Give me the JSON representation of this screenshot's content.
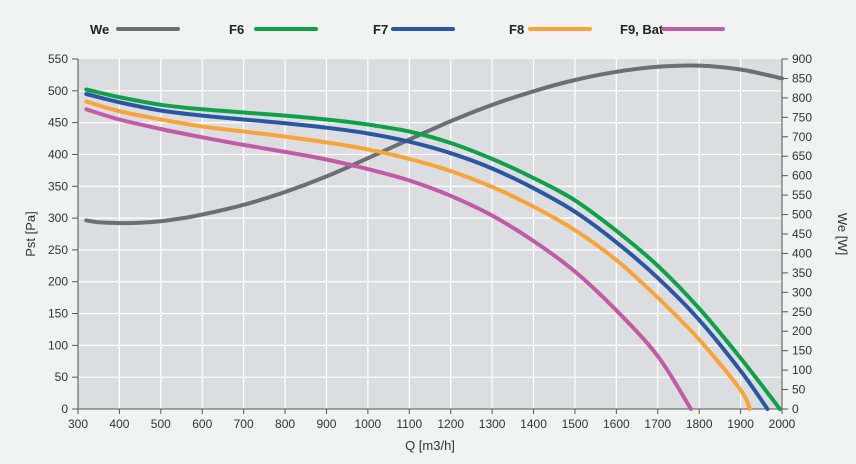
{
  "chart_data": {
    "type": "line",
    "xlabel": "Q [m3/h]",
    "ylabel_left": "Pst [Pa]",
    "ylabel_right": "We [W]",
    "xlim": [
      300,
      2000
    ],
    "ylim_left": [
      0,
      550
    ],
    "ylim_right": [
      0,
      900
    ],
    "x_ticks": [
      300,
      400,
      500,
      600,
      700,
      800,
      900,
      1000,
      1100,
      1200,
      1300,
      1400,
      1500,
      1600,
      1700,
      1800,
      1900,
      2000
    ],
    "y_left_ticks": [
      0,
      50,
      100,
      150,
      200,
      250,
      300,
      350,
      400,
      450,
      500,
      550
    ],
    "y_right_ticks": [
      0,
      50,
      100,
      150,
      200,
      250,
      300,
      350,
      400,
      450,
      500,
      550,
      600,
      650,
      700,
      750,
      800,
      850,
      900
    ],
    "grid": true,
    "legend_position": "top",
    "series": [
      {
        "name": "We",
        "color": "#6d6e70",
        "axis": "right",
        "points": [
          [
            320,
            485
          ],
          [
            350,
            480
          ],
          [
            400,
            478
          ],
          [
            450,
            479
          ],
          [
            500,
            483
          ],
          [
            550,
            490
          ],
          [
            600,
            500
          ],
          [
            700,
            525
          ],
          [
            800,
            558
          ],
          [
            900,
            598
          ],
          [
            1000,
            645
          ],
          [
            1100,
            693
          ],
          [
            1200,
            740
          ],
          [
            1300,
            782
          ],
          [
            1400,
            817
          ],
          [
            1500,
            846
          ],
          [
            1600,
            867
          ],
          [
            1700,
            880
          ],
          [
            1800,
            883
          ],
          [
            1900,
            873
          ],
          [
            2000,
            850
          ]
        ]
      },
      {
        "name": "F6",
        "color": "#0fa14a",
        "axis": "left",
        "points": [
          [
            320,
            502
          ],
          [
            400,
            490
          ],
          [
            500,
            478
          ],
          [
            600,
            471
          ],
          [
            700,
            466
          ],
          [
            800,
            461
          ],
          [
            900,
            455
          ],
          [
            1000,
            447
          ],
          [
            1100,
            436
          ],
          [
            1200,
            418
          ],
          [
            1300,
            393
          ],
          [
            1400,
            363
          ],
          [
            1500,
            328
          ],
          [
            1600,
            280
          ],
          [
            1700,
            225
          ],
          [
            1800,
            158
          ],
          [
            1900,
            80
          ],
          [
            1995,
            0
          ]
        ]
      },
      {
        "name": "F7",
        "color": "#2a57a4",
        "axis": "left",
        "points": [
          [
            320,
            495
          ],
          [
            400,
            482
          ],
          [
            500,
            469
          ],
          [
            600,
            461
          ],
          [
            700,
            455
          ],
          [
            800,
            449
          ],
          [
            900,
            442
          ],
          [
            1000,
            433
          ],
          [
            1100,
            420
          ],
          [
            1200,
            402
          ],
          [
            1300,
            378
          ],
          [
            1400,
            347
          ],
          [
            1500,
            310
          ],
          [
            1600,
            262
          ],
          [
            1700,
            206
          ],
          [
            1800,
            140
          ],
          [
            1900,
            60
          ],
          [
            1965,
            0
          ]
        ]
      },
      {
        "name": "F8",
        "color": "#f8a43a",
        "axis": "left",
        "points": [
          [
            320,
            483
          ],
          [
            400,
            468
          ],
          [
            500,
            455
          ],
          [
            600,
            444
          ],
          [
            700,
            436
          ],
          [
            800,
            428
          ],
          [
            900,
            419
          ],
          [
            1000,
            408
          ],
          [
            1100,
            393
          ],
          [
            1200,
            374
          ],
          [
            1300,
            349
          ],
          [
            1400,
            318
          ],
          [
            1500,
            281
          ],
          [
            1600,
            234
          ],
          [
            1700,
            175
          ],
          [
            1800,
            109
          ],
          [
            1900,
            30
          ],
          [
            1922,
            0
          ]
        ]
      },
      {
        "name": "F9, Bat",
        "color": "#c25ba6",
        "axis": "left",
        "points": [
          [
            320,
            471
          ],
          [
            400,
            455
          ],
          [
            500,
            440
          ],
          [
            600,
            427
          ],
          [
            700,
            415
          ],
          [
            800,
            404
          ],
          [
            900,
            392
          ],
          [
            1000,
            377
          ],
          [
            1100,
            359
          ],
          [
            1200,
            335
          ],
          [
            1300,
            304
          ],
          [
            1400,
            264
          ],
          [
            1500,
            216
          ],
          [
            1600,
            155
          ],
          [
            1700,
            83
          ],
          [
            1780,
            0
          ]
        ]
      }
    ]
  }
}
